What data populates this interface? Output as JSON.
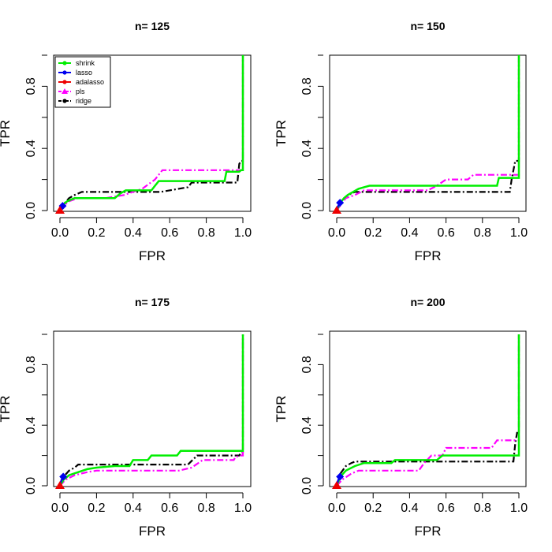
{
  "chart_data": [
    {
      "type": "line",
      "title": "n= 125",
      "xlabel": "FPR",
      "ylabel": "TPR",
      "xlim": [
        0,
        1
      ],
      "ylim": [
        0,
        1
      ],
      "xticks": [
        "0.0",
        "0.2",
        "0.4",
        "0.6",
        "0.8",
        "1.0"
      ],
      "yticks": [
        "0.0",
        "0.4",
        "0.8"
      ],
      "legend_position": "top-left",
      "series": [
        {
          "name": "shrink",
          "color": "#00ee00",
          "marker": "circle",
          "style": "solid",
          "x": [
            0,
            0.01,
            0.02,
            0.04,
            0.06,
            0.08,
            0.2,
            0.3,
            0.33,
            0.36,
            0.5,
            0.52,
            0.54,
            0.7,
            0.9,
            0.91,
            0.98,
            0.99,
            1.0,
            1.0
          ],
          "y": [
            0,
            0.02,
            0.04,
            0.06,
            0.07,
            0.08,
            0.08,
            0.08,
            0.11,
            0.13,
            0.13,
            0.16,
            0.19,
            0.19,
            0.19,
            0.25,
            0.25,
            0.26,
            0.26,
            1.0
          ]
        },
        {
          "name": "lasso",
          "color": "#0000ee",
          "marker": "circle",
          "style": "solid",
          "x": [
            0,
            0.005,
            0.01,
            0.015
          ],
          "y": [
            0,
            0.015,
            0.025,
            0.03
          ]
        },
        {
          "name": "adalasso",
          "color": "#ee0000",
          "marker": "circle",
          "style": "solid",
          "x": [
            0,
            0.004,
            0.008
          ],
          "y": [
            0,
            0.005,
            0.01
          ]
        },
        {
          "name": "pls",
          "color": "#ff00ff",
          "marker": "triangle",
          "style": "dashdot",
          "x": [
            0,
            0.02,
            0.05,
            0.1,
            0.25,
            0.3,
            0.35,
            0.45,
            0.52,
            0.56,
            0.6,
            0.8,
            0.98,
            1.0,
            1.0
          ],
          "y": [
            0,
            0.03,
            0.06,
            0.08,
            0.08,
            0.09,
            0.1,
            0.14,
            0.2,
            0.26,
            0.26,
            0.26,
            0.26,
            0.26,
            1.0
          ]
        },
        {
          "name": "ridge",
          "color": "#000000",
          "marker": "circle",
          "style": "dashdot",
          "x": [
            0,
            0.02,
            0.05,
            0.08,
            0.12,
            0.15,
            0.45,
            0.55,
            0.7,
            0.72,
            0.97,
            0.98,
            0.99,
            1.0,
            1.0
          ],
          "y": [
            0,
            0.04,
            0.08,
            0.1,
            0.12,
            0.12,
            0.12,
            0.12,
            0.15,
            0.18,
            0.18,
            0.3,
            0.32,
            0.32,
            1.0
          ]
        }
      ]
    },
    {
      "type": "line",
      "title": "n= 150",
      "xlabel": "FPR",
      "ylabel": "TPR",
      "xlim": [
        0,
        1
      ],
      "ylim": [
        0,
        1
      ],
      "xticks": [
        "0.0",
        "0.2",
        "0.4",
        "0.6",
        "0.8",
        "1.0"
      ],
      "yticks": [
        "0.0",
        "0.4",
        "0.8"
      ],
      "series": [
        {
          "name": "shrink",
          "color": "#00ee00",
          "marker": "circle",
          "style": "solid",
          "x": [
            0,
            0.02,
            0.04,
            0.06,
            0.09,
            0.12,
            0.15,
            0.18,
            0.88,
            0.89,
            0.99,
            1.0,
            1.0
          ],
          "y": [
            0,
            0.05,
            0.08,
            0.1,
            0.12,
            0.14,
            0.15,
            0.16,
            0.16,
            0.21,
            0.21,
            0.21,
            1.0
          ]
        },
        {
          "name": "lasso",
          "color": "#0000ee",
          "marker": "circle",
          "style": "solid",
          "x": [
            0,
            0.006,
            0.012,
            0.018
          ],
          "y": [
            0,
            0.025,
            0.04,
            0.05
          ]
        },
        {
          "name": "adalasso",
          "color": "#ee0000",
          "marker": "circle",
          "style": "solid",
          "x": [
            0,
            0.004,
            0.008
          ],
          "y": [
            0,
            0.005,
            0.01
          ]
        },
        {
          "name": "pls",
          "color": "#ff00ff",
          "marker": "triangle",
          "style": "dashdot",
          "x": [
            0,
            0.03,
            0.05,
            0.1,
            0.15,
            0.5,
            0.55,
            0.6,
            0.72,
            0.75,
            0.99,
            1.0,
            1.0
          ],
          "y": [
            0,
            0.05,
            0.08,
            0.1,
            0.13,
            0.13,
            0.16,
            0.2,
            0.2,
            0.23,
            0.23,
            0.23,
            1.0
          ]
        },
        {
          "name": "ridge",
          "color": "#000000",
          "marker": "circle",
          "style": "dashdot",
          "x": [
            0,
            0.02,
            0.05,
            0.08,
            0.1,
            0.95,
            0.96,
            0.98,
            1.0,
            1.0
          ],
          "y": [
            0,
            0.05,
            0.09,
            0.11,
            0.12,
            0.12,
            0.2,
            0.32,
            0.32,
            1.0
          ]
        }
      ]
    },
    {
      "type": "line",
      "title": "n= 175",
      "xlabel": "FPR",
      "ylabel": "TPR",
      "xlim": [
        0,
        1
      ],
      "ylim": [
        0,
        1
      ],
      "xticks": [
        "0.0",
        "0.2",
        "0.4",
        "0.6",
        "0.8",
        "1.0"
      ],
      "yticks": [
        "0.0",
        "0.4",
        "0.8"
      ],
      "series": [
        {
          "name": "shrink",
          "color": "#00ee00",
          "marker": "circle",
          "style": "solid",
          "x": [
            0,
            0.02,
            0.05,
            0.1,
            0.15,
            0.2,
            0.3,
            0.38,
            0.4,
            0.48,
            0.5,
            0.64,
            0.66,
            0.97,
            0.99,
            1.0,
            1.0
          ],
          "y": [
            0,
            0.04,
            0.07,
            0.09,
            0.11,
            0.12,
            0.13,
            0.13,
            0.17,
            0.17,
            0.2,
            0.2,
            0.23,
            0.23,
            0.23,
            0.23,
            1.0
          ]
        },
        {
          "name": "lasso",
          "color": "#0000ee",
          "marker": "circle",
          "style": "solid",
          "x": [
            0,
            0.006,
            0.012,
            0.018
          ],
          "y": [
            0,
            0.03,
            0.05,
            0.06
          ]
        },
        {
          "name": "adalasso",
          "color": "#ee0000",
          "marker": "circle",
          "style": "solid",
          "x": [
            0,
            0.004,
            0.008
          ],
          "y": [
            0,
            0.005,
            0.01
          ]
        },
        {
          "name": "pls",
          "color": "#ff00ff",
          "marker": "triangle",
          "style": "dashdot",
          "x": [
            0,
            0.03,
            0.08,
            0.15,
            0.2,
            0.65,
            0.72,
            0.78,
            0.95,
            0.96,
            0.99,
            1.0,
            1.0
          ],
          "y": [
            0,
            0.04,
            0.07,
            0.09,
            0.1,
            0.1,
            0.12,
            0.17,
            0.17,
            0.19,
            0.2,
            0.2,
            1.0
          ]
        },
        {
          "name": "ridge",
          "color": "#000000",
          "marker": "circle",
          "style": "dashdot",
          "x": [
            0,
            0.02,
            0.05,
            0.08,
            0.1,
            0.7,
            0.75,
            0.98,
            0.99,
            1.0,
            1.0
          ],
          "y": [
            0,
            0.06,
            0.1,
            0.12,
            0.14,
            0.14,
            0.2,
            0.2,
            0.22,
            0.22,
            1.0
          ]
        }
      ]
    },
    {
      "type": "line",
      "title": "n= 200",
      "xlabel": "FPR",
      "ylabel": "TPR",
      "xlim": [
        0,
        1
      ],
      "ylim": [
        0,
        1
      ],
      "xticks": [
        "0.0",
        "0.2",
        "0.4",
        "0.6",
        "0.8",
        "1.0"
      ],
      "yticks": [
        "0.0",
        "0.4",
        "0.8"
      ],
      "series": [
        {
          "name": "shrink",
          "color": "#00ee00",
          "marker": "circle",
          "style": "solid",
          "x": [
            0,
            0.02,
            0.05,
            0.1,
            0.15,
            0.3,
            0.32,
            0.55,
            0.58,
            0.98,
            1.0,
            1.0
          ],
          "y": [
            0,
            0.06,
            0.1,
            0.13,
            0.15,
            0.15,
            0.17,
            0.17,
            0.2,
            0.2,
            0.2,
            1.0
          ]
        },
        {
          "name": "lasso",
          "color": "#0000ee",
          "marker": "circle",
          "style": "solid",
          "x": [
            0,
            0.006,
            0.012,
            0.018
          ],
          "y": [
            0,
            0.03,
            0.05,
            0.06
          ]
        },
        {
          "name": "adalasso",
          "color": "#ee0000",
          "marker": "circle",
          "style": "solid",
          "x": [
            0,
            0.004,
            0.008
          ],
          "y": [
            0,
            0.005,
            0.01
          ]
        },
        {
          "name": "pls",
          "color": "#ff00ff",
          "marker": "triangle",
          "style": "dashdot",
          "x": [
            0,
            0.03,
            0.08,
            0.12,
            0.45,
            0.48,
            0.52,
            0.58,
            0.6,
            0.85,
            0.88,
            0.98,
            1.0,
            1.0
          ],
          "y": [
            0,
            0.04,
            0.08,
            0.1,
            0.1,
            0.15,
            0.2,
            0.2,
            0.25,
            0.25,
            0.3,
            0.3,
            0.3,
            1.0
          ]
        },
        {
          "name": "ridge",
          "color": "#000000",
          "marker": "circle",
          "style": "dashdot",
          "x": [
            0,
            0.02,
            0.05,
            0.08,
            0.1,
            0.97,
            0.98,
            0.99,
            1.0,
            1.0
          ],
          "y": [
            0,
            0.08,
            0.13,
            0.15,
            0.16,
            0.16,
            0.28,
            0.35,
            0.35,
            1.0
          ]
        }
      ]
    }
  ]
}
